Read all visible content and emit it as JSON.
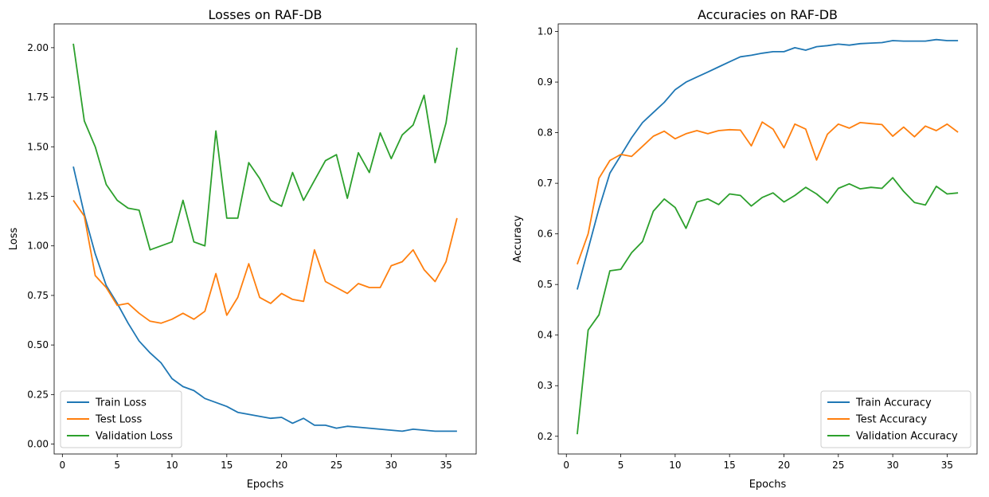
{
  "colors": {
    "train": "#1f77b4",
    "test": "#ff7f0e",
    "validation": "#2ca02c"
  },
  "chart_data": [
    {
      "type": "line",
      "title": "Losses on RAF-DB",
      "xlabel": "Epochs",
      "ylabel": "Loss",
      "xlim": [
        -0.75,
        37.75
      ],
      "ylim": [
        -0.05,
        2.12
      ],
      "xticks": [
        0,
        5,
        10,
        15,
        20,
        25,
        30,
        35
      ],
      "yticks": [
        0.0,
        0.25,
        0.5,
        0.75,
        1.0,
        1.25,
        1.5,
        1.75,
        2.0
      ],
      "ytick_labels": [
        "0.00",
        "0.25",
        "0.50",
        "0.75",
        "1.00",
        "1.25",
        "1.50",
        "1.75",
        "2.00"
      ],
      "grid": false,
      "legend": "lower-left",
      "x": [
        1,
        2,
        3,
        4,
        5,
        6,
        7,
        8,
        9,
        10,
        11,
        12,
        13,
        14,
        15,
        16,
        17,
        18,
        19,
        20,
        21,
        22,
        23,
        24,
        25,
        26,
        27,
        28,
        29,
        30,
        31,
        32,
        33,
        34,
        35,
        36
      ],
      "series": [
        {
          "name": "Train Loss",
          "color_key": "train",
          "values": [
            1.4,
            1.16,
            0.96,
            0.8,
            0.71,
            0.61,
            0.52,
            0.46,
            0.41,
            0.33,
            0.29,
            0.27,
            0.23,
            0.21,
            0.19,
            0.16,
            0.15,
            0.14,
            0.13,
            0.135,
            0.105,
            0.13,
            0.095,
            0.095,
            0.08,
            0.09,
            0.085,
            0.08,
            0.075,
            0.07,
            0.065,
            0.075,
            0.07,
            0.065,
            0.065,
            0.065
          ]
        },
        {
          "name": "Test Loss",
          "color_key": "test",
          "values": [
            1.23,
            1.15,
            0.85,
            0.79,
            0.7,
            0.71,
            0.66,
            0.62,
            0.61,
            0.63,
            0.66,
            0.63,
            0.67,
            0.86,
            0.65,
            0.74,
            0.91,
            0.74,
            0.71,
            0.76,
            0.73,
            0.72,
            0.98,
            0.82,
            0.79,
            0.76,
            0.81,
            0.79,
            0.79,
            0.9,
            0.92,
            0.98,
            0.88,
            0.82,
            0.92,
            1.14
          ]
        },
        {
          "name": "Validation Loss",
          "color_key": "validation",
          "values": [
            2.02,
            1.63,
            1.5,
            1.31,
            1.23,
            1.19,
            1.18,
            0.98,
            1.0,
            1.02,
            1.23,
            1.02,
            1.0,
            1.58,
            1.14,
            1.14,
            1.42,
            1.34,
            1.23,
            1.2,
            1.37,
            1.23,
            1.33,
            1.43,
            1.46,
            1.24,
            1.47,
            1.37,
            1.57,
            1.44,
            1.56,
            1.61,
            1.76,
            1.42,
            1.62,
            2.0
          ]
        }
      ]
    },
    {
      "type": "line",
      "title": "Accuracies on RAF-DB",
      "xlabel": "Epochs",
      "ylabel": "Accuracy",
      "xlim": [
        -0.75,
        37.75
      ],
      "ylim": [
        0.165,
        1.015
      ],
      "xticks": [
        0,
        5,
        10,
        15,
        20,
        25,
        30,
        35
      ],
      "yticks": [
        0.2,
        0.3,
        0.4,
        0.5,
        0.6,
        0.7,
        0.8,
        0.9,
        1.0
      ],
      "ytick_labels": [
        "0.2",
        "0.3",
        "0.4",
        "0.5",
        "0.6",
        "0.7",
        "0.8",
        "0.9",
        "1.0"
      ],
      "grid": false,
      "legend": "lower-right",
      "x": [
        1,
        2,
        3,
        4,
        5,
        6,
        7,
        8,
        9,
        10,
        11,
        12,
        13,
        14,
        15,
        16,
        17,
        18,
        19,
        20,
        21,
        22,
        23,
        24,
        25,
        26,
        27,
        28,
        29,
        30,
        31,
        32,
        33,
        34,
        35,
        36
      ],
      "series": [
        {
          "name": "Train Accuracy",
          "color_key": "train",
          "values": [
            0.49,
            0.57,
            0.65,
            0.72,
            0.755,
            0.79,
            0.82,
            0.84,
            0.86,
            0.885,
            0.9,
            0.91,
            0.92,
            0.93,
            0.94,
            0.95,
            0.953,
            0.957,
            0.96,
            0.96,
            0.968,
            0.963,
            0.97,
            0.972,
            0.975,
            0.973,
            0.976,
            0.977,
            0.978,
            0.982,
            0.981,
            0.981,
            0.981,
            0.984,
            0.982,
            0.982
          ]
        },
        {
          "name": "Test Accuracy",
          "color_key": "test",
          "values": [
            0.54,
            0.6,
            0.71,
            0.745,
            0.757,
            0.753,
            0.773,
            0.793,
            0.803,
            0.788,
            0.798,
            0.804,
            0.798,
            0.804,
            0.806,
            0.805,
            0.774,
            0.821,
            0.807,
            0.77,
            0.817,
            0.807,
            0.746,
            0.797,
            0.817,
            0.809,
            0.82,
            0.818,
            0.816,
            0.793,
            0.811,
            0.792,
            0.813,
            0.804,
            0.817,
            0.801
          ]
        },
        {
          "name": "Validation Accuracy",
          "color_key": "validation",
          "values": [
            0.204,
            0.41,
            0.44,
            0.527,
            0.53,
            0.563,
            0.585,
            0.645,
            0.669,
            0.652,
            0.611,
            0.663,
            0.669,
            0.658,
            0.679,
            0.676,
            0.655,
            0.672,
            0.681,
            0.663,
            0.676,
            0.692,
            0.679,
            0.661,
            0.69,
            0.699,
            0.689,
            0.692,
            0.69,
            0.711,
            0.684,
            0.662,
            0.657,
            0.694,
            0.679,
            0.681
          ]
        }
      ]
    }
  ]
}
